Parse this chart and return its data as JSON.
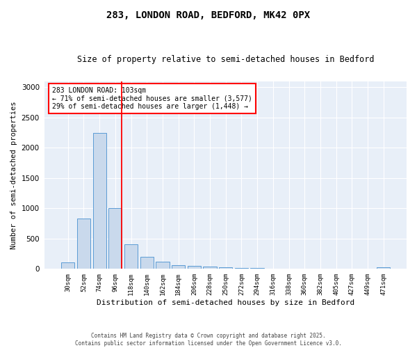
{
  "title": "283, LONDON ROAD, BEDFORD, MK42 0PX",
  "subtitle": "Size of property relative to semi-detached houses in Bedford",
  "xlabel": "Distribution of semi-detached houses by size in Bedford",
  "ylabel": "Number of semi-detached properties",
  "categories": [
    "30sqm",
    "52sqm",
    "74sqm",
    "96sqm",
    "118sqm",
    "140sqm",
    "162sqm",
    "184sqm",
    "206sqm",
    "228sqm",
    "250sqm",
    "272sqm",
    "294sqm",
    "316sqm",
    "338sqm",
    "360sqm",
    "382sqm",
    "405sqm",
    "427sqm",
    "449sqm",
    "471sqm"
  ],
  "bar_values": [
    100,
    830,
    2250,
    1000,
    400,
    200,
    110,
    60,
    40,
    30,
    20,
    15,
    10,
    5,
    5,
    2,
    2,
    2,
    2,
    2,
    20
  ],
  "bar_color": "#c9d9ec",
  "bar_edge_color": "#5b9bd5",
  "background_color": "#e8eff8",
  "grid_color": "#ffffff",
  "fig_background": "#ffffff",
  "red_line_index": 3,
  "annotation_title": "283 LONDON ROAD: 103sqm",
  "annotation_line1": "← 71% of semi-detached houses are smaller (3,577)",
  "annotation_line2": "29% of semi-detached houses are larger (1,448) →",
  "footer_line1": "Contains HM Land Registry data © Crown copyright and database right 2025.",
  "footer_line2": "Contains public sector information licensed under the Open Government Licence v3.0.",
  "ylim": [
    0,
    3100
  ],
  "yticks": [
    0,
    500,
    1000,
    1500,
    2000,
    2500,
    3000
  ]
}
